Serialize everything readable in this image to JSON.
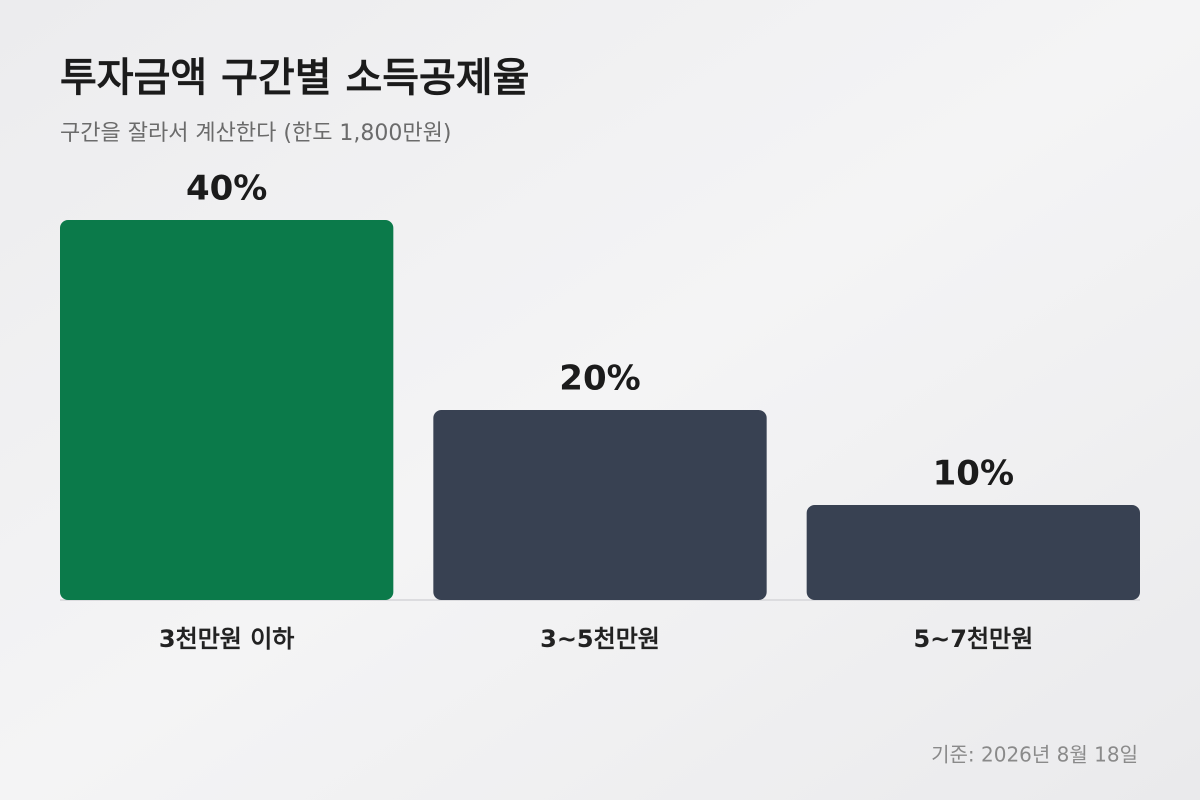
{
  "chart_data": {
    "type": "bar",
    "title": "투자금액 구간별 소득공제율",
    "subtitle": "구간을 잘라서 계산한다 (한도 1,800만원)",
    "categories": [
      "3천만원 이하",
      "3~5천만원",
      "5~7천만원"
    ],
    "values": [
      40,
      20,
      10
    ],
    "value_labels": [
      "40%",
      "20%",
      "10%"
    ],
    "colors": [
      "#0b7a4a",
      "#384152",
      "#384152"
    ],
    "footnote": "기준: 2026년 8월 18일"
  }
}
